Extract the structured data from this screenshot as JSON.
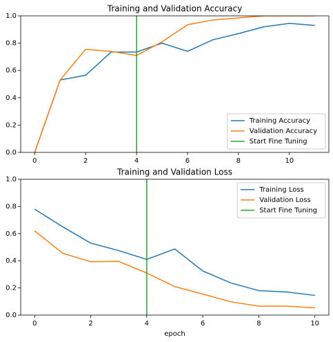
{
  "chart_data": [
    {
      "type": "line",
      "title": "Training and Validation Accuracy",
      "xlim": [
        -0.55,
        11.55
      ],
      "xticks": [
        0,
        2,
        4,
        6,
        8,
        10
      ],
      "ylim": [
        0,
        1
      ],
      "yticks": [
        {
          "value": 0,
          "label": "0.0"
        },
        {
          "value": 0.2,
          "label": "0.2"
        },
        {
          "value": 0.4,
          "label": "0.4"
        },
        {
          "value": 0.6,
          "label": "0.6"
        },
        {
          "value": 0.8,
          "label": "0.8"
        },
        {
          "value": 1,
          "label": "1.0"
        }
      ],
      "legend": "lower right",
      "series": [
        {
          "name": "Training Accuracy",
          "color": "#1f77b4",
          "x": [
            0,
            1,
            2,
            3,
            4,
            5,
            6,
            7,
            8,
            9,
            10,
            11
          ],
          "values": [
            0,
            0.53,
            0.565,
            0.735,
            0.735,
            0.8,
            0.74,
            0.825,
            0.87,
            0.92,
            0.945,
            0.93
          ]
        },
        {
          "name": "Validation Accuracy",
          "color": "#ff7f0e",
          "x": [
            0,
            1,
            2,
            3,
            4,
            5,
            6,
            7,
            8,
            9,
            10,
            11
          ],
          "values": [
            0,
            0.53,
            0.755,
            0.74,
            0.71,
            0.81,
            0.935,
            0.97,
            0.985,
            1.0,
            1.0,
            1.0
          ]
        },
        {
          "name": "Start Fine Tuning",
          "color": "#2ca02c",
          "x": [
            4,
            4
          ],
          "values": [
            0,
            1
          ]
        }
      ]
    },
    {
      "type": "line",
      "title": "Training and Validation Loss",
      "xlabel": "epoch",
      "xlim": [
        -0.5,
        10.5
      ],
      "xticks": [
        0,
        2,
        4,
        6,
        8,
        10
      ],
      "ylim": [
        0,
        1
      ],
      "yticks": [
        {
          "value": 0,
          "label": "0.0"
        },
        {
          "value": 0.2,
          "label": "0.2"
        },
        {
          "value": 0.4,
          "label": "0.4"
        },
        {
          "value": 0.6,
          "label": "0.6"
        },
        {
          "value": 0.8,
          "label": "0.8"
        },
        {
          "value": 1,
          "label": "1.0"
        }
      ],
      "legend": "upper right",
      "series": [
        {
          "name": "Training Loss",
          "color": "#1f77b4",
          "x": [
            0,
            1,
            2,
            3,
            4,
            5,
            6,
            7,
            8,
            9,
            10
          ],
          "values": [
            0.78,
            0.65,
            0.53,
            0.475,
            0.41,
            0.487,
            0.325,
            0.237,
            0.18,
            0.17,
            0.145
          ]
        },
        {
          "name": "Validation Loss",
          "color": "#ff7f0e",
          "x": [
            0,
            1,
            2,
            3,
            4,
            5,
            6,
            7,
            8,
            9,
            10
          ],
          "values": [
            0.62,
            0.455,
            0.393,
            0.395,
            0.31,
            0.21,
            0.155,
            0.098,
            0.066,
            0.066,
            0.053
          ]
        },
        {
          "name": "Start Fine Tuning",
          "color": "#2ca02c",
          "x": [
            4,
            4
          ],
          "values": [
            0,
            1
          ]
        }
      ]
    }
  ]
}
